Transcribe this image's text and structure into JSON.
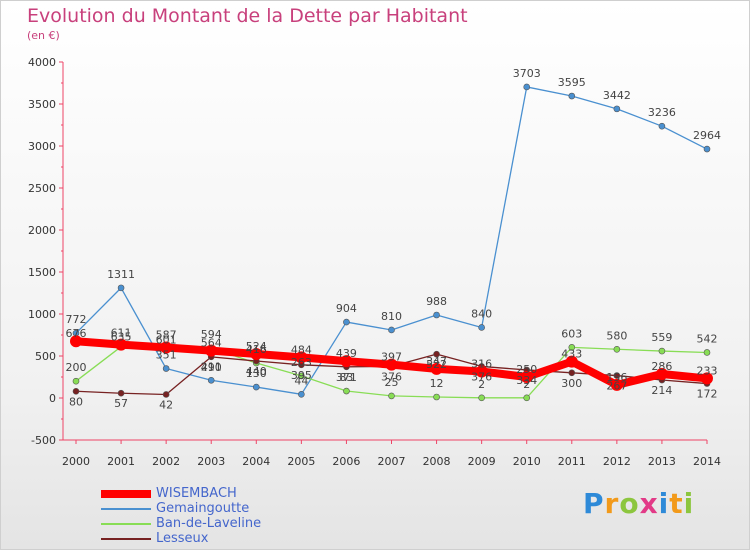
{
  "chart_data": {
    "type": "line",
    "title": "Evolution du Montant de la Dette par Habitant",
    "subtitle": "(en €)",
    "x": [
      "2000",
      "2001",
      "2002",
      "2003",
      "2004",
      "2005",
      "2006",
      "2007",
      "2008",
      "2009",
      "2010",
      "2011",
      "2012",
      "2013",
      "2014"
    ],
    "ylim": [
      -500,
      4000
    ],
    "yticks": [
      -500,
      0,
      500,
      1000,
      1500,
      2000,
      2500,
      3000,
      3500,
      4000
    ],
    "grid": false,
    "legend_position": "bottom-left",
    "series": [
      {
        "name": "WISEMBACH",
        "color": "#ff0000",
        "values": [
          676,
          635,
          601,
          564,
          524,
          484,
          439,
          397,
          347,
          316,
          250,
          433,
          156,
          286,
          233
        ]
      },
      {
        "name": "Gemaingoutte",
        "color": "#4a90d0",
        "values": [
          772,
          1311,
          351,
          211,
          130,
          44,
          904,
          810,
          988,
          840,
          3703,
          3595,
          3442,
          3236,
          2964
        ]
      },
      {
        "name": "Ban-de-Laveline",
        "color": "#88dd55",
        "values": [
          200,
          611,
          587,
          594,
          416,
          263,
          83,
          25,
          12,
          2,
          2,
          603,
          580,
          559,
          542
        ]
      },
      {
        "name": "Lesseux",
        "color": "#772222",
        "values": [
          80,
          57,
          42,
          490,
          440,
          395,
          371,
          376,
          522,
          376,
          334,
          300,
          267,
          214,
          172
        ]
      }
    ]
  },
  "logo": {
    "letters": [
      "P",
      "r",
      "o",
      "x",
      "i",
      "t",
      "i"
    ],
    "colors": [
      "#2e8ad8",
      "#f29a1a",
      "#8cc63e",
      "#e23a87",
      "#2e8ad8",
      "#f29a1a",
      "#8cc63e"
    ]
  }
}
